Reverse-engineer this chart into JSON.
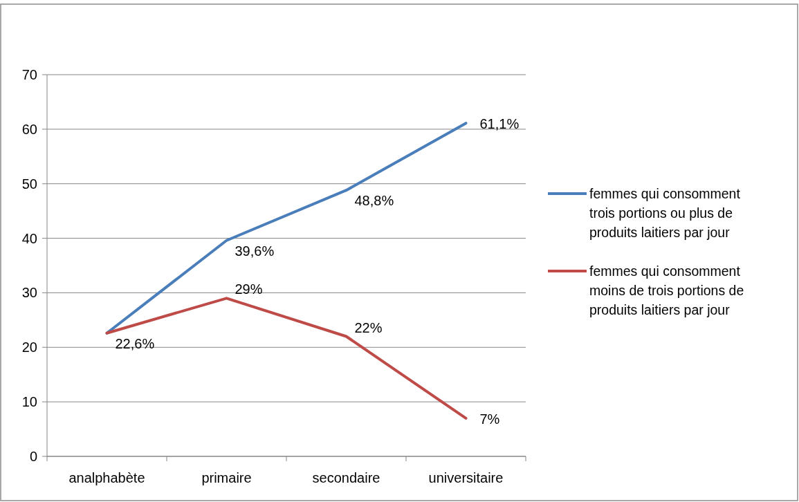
{
  "chart_data": {
    "type": "line",
    "categories": [
      "analphabète",
      "primaire",
      "secondaire",
      "universitaire"
    ],
    "series": [
      {
        "name": "femmes qui consomment trois portions ou plus de produits laitiers par jour",
        "color": "#4a7ebb",
        "values": [
          22.6,
          39.6,
          48.8,
          61.1
        ],
        "value_labels": [
          "22,6%",
          "39,6%",
          "48,8%",
          "61,1%"
        ]
      },
      {
        "name": "femmes qui consomment moins de trois portions de produits laitiers par jour",
        "color": "#be4b48",
        "values": [
          22.6,
          29,
          22,
          7
        ],
        "value_labels": [
          null,
          "29%",
          "22%",
          "7%"
        ]
      }
    ],
    "ylim": [
      0,
      70
    ],
    "yticks": [
      0,
      10,
      20,
      30,
      40,
      50,
      60,
      70
    ],
    "grid": "y",
    "legend": "right",
    "marker": "none",
    "line_style": "solid"
  }
}
